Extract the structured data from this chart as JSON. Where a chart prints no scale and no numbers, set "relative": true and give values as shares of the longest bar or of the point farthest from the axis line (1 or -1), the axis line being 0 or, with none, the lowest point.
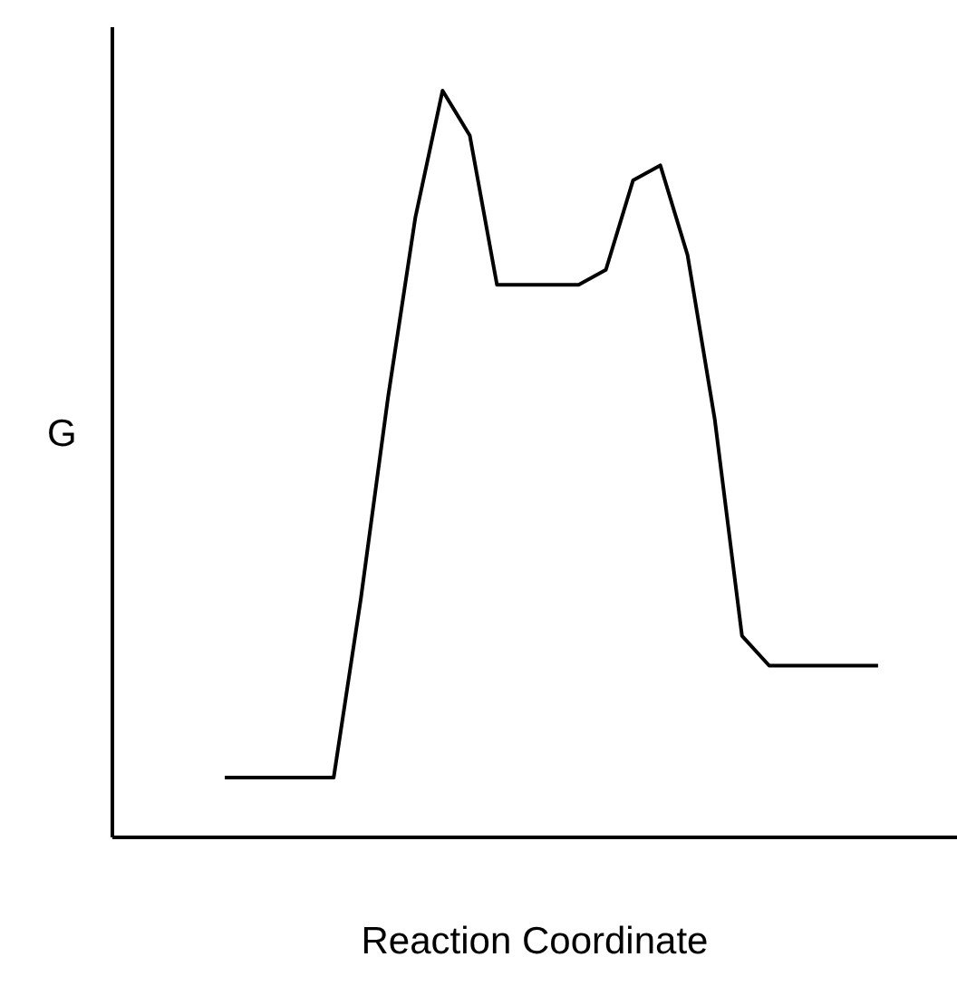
{
  "chart_data": {
    "type": "line",
    "relative": true,
    "xlabel": "Reaction Coordinate",
    "ylabel": "G",
    "categories": [
      null,
      null,
      null,
      null,
      null,
      null,
      null,
      null,
      null,
      null,
      null,
      null,
      null,
      null,
      null,
      null,
      null,
      null,
      null,
      null,
      null,
      null,
      null,
      null,
      null
    ],
    "series": [
      {
        "color": "#000000",
        "values": [
          0.08,
          0.08,
          0.08,
          0.08,
          0.08,
          0.32,
          0.59,
          0.83,
          1.0,
          0.94,
          0.74,
          0.74,
          0.74,
          0.74,
          0.76,
          0.88,
          0.9,
          0.78,
          0.56,
          0.27,
          0.23,
          0.23,
          0.23,
          0.23,
          0.23
        ]
      }
    ],
    "grid": false,
    "legend": false,
    "marker": "none",
    "line_style": "solid"
  }
}
